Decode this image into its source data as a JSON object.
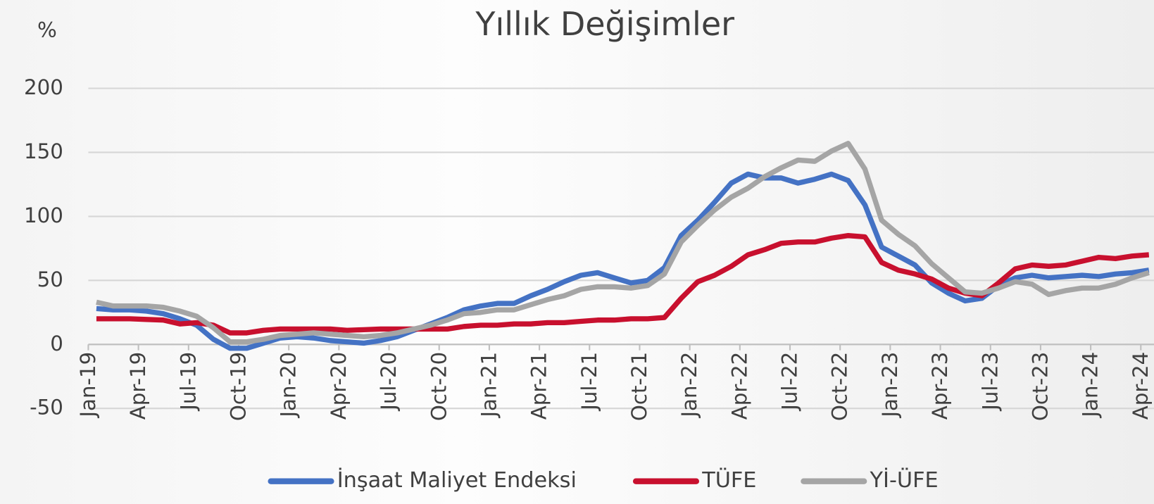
{
  "chart_data": {
    "type": "line",
    "title": "Yıllık Değişimler",
    "y_label": "%",
    "categories": [
      "Jan-19",
      null,
      null,
      "Apr-19",
      null,
      null,
      "Jul-19",
      null,
      null,
      "Oct-19",
      null,
      null,
      "Jan-20",
      null,
      null,
      "Apr-20",
      null,
      null,
      "Jul-20",
      null,
      null,
      "Oct-20",
      null,
      null,
      "Jan-21",
      null,
      null,
      "Apr-21",
      null,
      null,
      "Jul-21",
      null,
      null,
      "Oct-21",
      null,
      null,
      "Jan-22",
      null,
      null,
      "Apr-22",
      null,
      null,
      "Jul-22",
      null,
      null,
      "Oct-22",
      null,
      null,
      "Jan-23",
      null,
      null,
      "Apr-23",
      null,
      null,
      "Jul-23",
      null,
      null,
      "Oct-23",
      null,
      null,
      "Jan-24",
      null,
      null,
      "Apr-24"
    ],
    "series": [
      {
        "name": "İnşaat Maliyet Endeksi",
        "color": "#4472c4",
        "values": [
          28,
          27,
          27,
          26,
          24,
          20,
          15,
          4,
          -3,
          -3,
          1,
          5,
          6,
          5,
          3,
          2,
          1,
          3,
          6,
          11,
          16,
          21,
          27,
          30,
          32,
          32,
          38,
          43,
          49,
          54,
          56,
          52,
          48,
          50,
          60,
          85,
          97,
          111,
          126,
          133,
          130,
          130,
          126,
          129,
          133,
          128,
          109,
          76,
          69,
          62,
          48,
          40,
          34,
          36,
          46,
          52,
          54,
          52,
          53,
          54,
          53,
          55,
          56,
          58
        ]
      },
      {
        "name": "TÜFE",
        "color": "#c8102e",
        "values": [
          20,
          20,
          20,
          19.5,
          19,
          16,
          17,
          15,
          9,
          9,
          11,
          12,
          12,
          12,
          12,
          11,
          11.5,
          12,
          12,
          12,
          12,
          12,
          14,
          15,
          15,
          16,
          16,
          17,
          17,
          18,
          19,
          19,
          20,
          20,
          21,
          36,
          49,
          54,
          61,
          70,
          74,
          79,
          80,
          80,
          83,
          85,
          84,
          64,
          58,
          55,
          51,
          44,
          40,
          38,
          48,
          59,
          62,
          61,
          62,
          65,
          68,
          67,
          69,
          70
        ]
      },
      {
        "name": "Yİ-ÜFE",
        "color": "#a5a5a5",
        "values": [
          33,
          30,
          30,
          30,
          29,
          26,
          22,
          13,
          2,
          2,
          4,
          7,
          8,
          9,
          8,
          7,
          6,
          7,
          9,
          12,
          15,
          19,
          24,
          25,
          27,
          27,
          31,
          35,
          38,
          43,
          45,
          45,
          44,
          46,
          55,
          80,
          93,
          105,
          115,
          122,
          131,
          138,
          144,
          143,
          151,
          157,
          137,
          97,
          86,
          77,
          63,
          52,
          41,
          40,
          44,
          49,
          47,
          39,
          42,
          44,
          44,
          47,
          52,
          56
        ]
      }
    ],
    "ylim": [
      -50,
      200
    ],
    "yticks": [
      -50,
      0,
      50,
      100,
      150,
      200
    ],
    "grid": true
  }
}
